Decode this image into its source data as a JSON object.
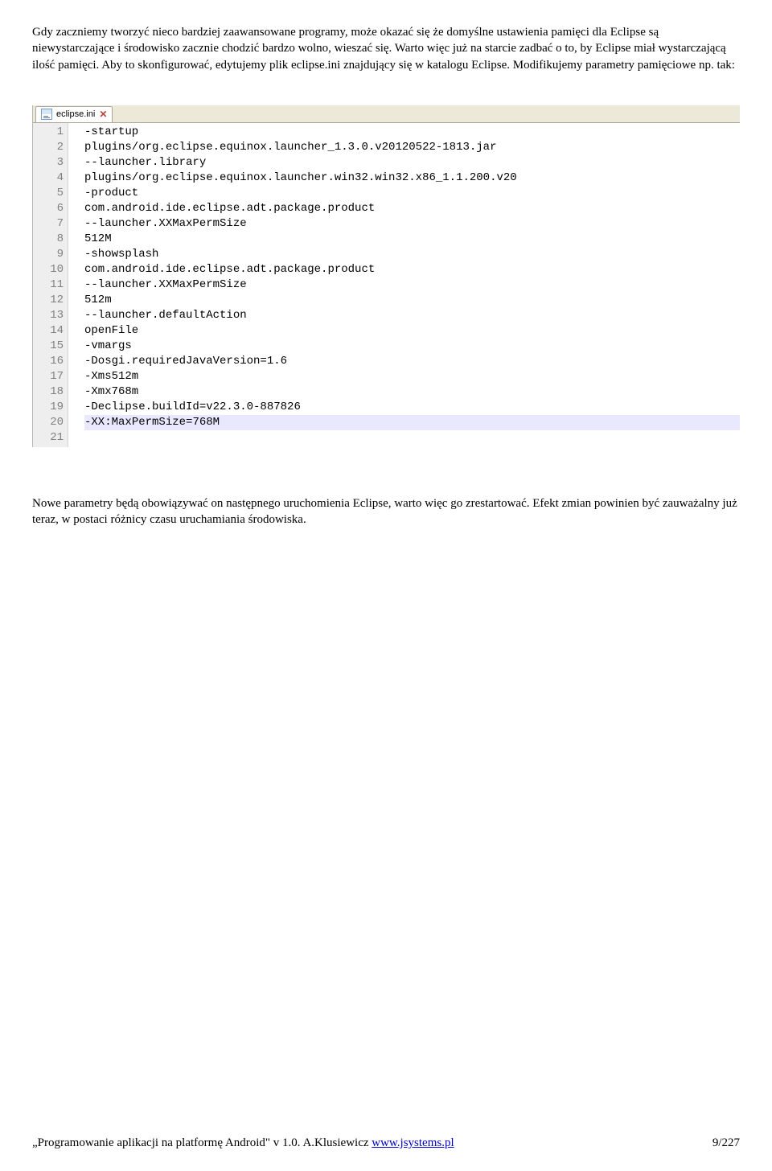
{
  "para1": "Gdy zaczniemy tworzyć nieco bardziej zaawansowane programy, może okazać się że domyślne ustawienia pamięci dla Eclipse są niewystarczające i środowisko zacznie chodzić bardzo wolno, wieszać się. Warto więc już na starcie zadbać o to, by Eclipse miał wystarczającą ilość pamięci. Aby to skonfigurować, edytujemy plik eclipse.ini znajdujący się w katalogu Eclipse. Modifikujemy parametry pamięciowe np. tak:",
  "tab_label": "eclipse.ini",
  "editor": {
    "lines": [
      "-startup",
      "plugins/org.eclipse.equinox.launcher_1.3.0.v20120522-1813.jar",
      "--launcher.library",
      "plugins/org.eclipse.equinox.launcher.win32.win32.x86_1.1.200.v20",
      "-product",
      "com.android.ide.eclipse.adt.package.product",
      "--launcher.XXMaxPermSize",
      "512M",
      "-showsplash",
      "com.android.ide.eclipse.adt.package.product",
      "--launcher.XXMaxPermSize",
      "512m",
      "--launcher.defaultAction",
      "openFile",
      "-vmargs",
      "-Dosgi.requiredJavaVersion=1.6",
      "-Xms512m",
      "-Xmx768m",
      "-Declipse.buildId=v22.3.0-887826",
      "-XX:MaxPermSize=768M",
      ""
    ],
    "highlighted_line_index": 19
  },
  "para2": "Nowe parametry będą obowiązywać on następnego uruchomienia Eclipse, warto więc go zrestartować. Efekt zmian powinien być zauważalny już teraz, w postaci różnicy czasu uruchamiania środowiska.",
  "footer": {
    "title": "„Programowanie aplikacji na platformę Android\" v 1.0. A.Klusiewicz ",
    "link_text": "www.jsystems.pl",
    "page": "9/227"
  }
}
